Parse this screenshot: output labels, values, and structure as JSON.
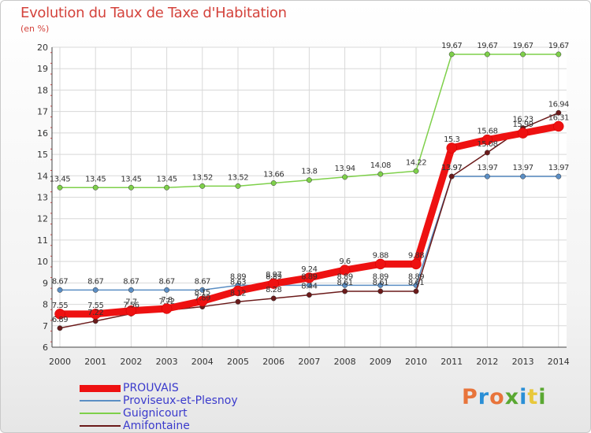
{
  "header": {
    "title": "Evolution du Taux de Taxe d'Habitation",
    "unit": "(en %)"
  },
  "brand": {
    "text": "Proxiti",
    "colors": [
      "#e8743b",
      "#2a8fd6",
      "#e8743b",
      "#5aa832",
      "#2a8fd6",
      "#e8c83b",
      "#5aa832"
    ]
  },
  "chart_data": {
    "type": "line",
    "title": "Evolution du Taux de Taxe d'Habitation",
    "ylabel": "(en %)",
    "xlabel": "",
    "x": [
      "2000",
      "2001",
      "2002",
      "2003",
      "2004",
      "2005",
      "2006",
      "2007",
      "2008",
      "2009",
      "2010",
      "2011",
      "2012",
      "2013",
      "2014"
    ],
    "ylim": [
      6,
      20
    ],
    "yticks": [
      "6",
      "7",
      "8",
      "9",
      "10",
      "11",
      "12",
      "13",
      "14",
      "15",
      "16",
      "17",
      "18",
      "19",
      "20"
    ],
    "grid": true,
    "legend_position": "bottom-left",
    "series": [
      {
        "name": "PROUVAIS",
        "color": "#ee1111",
        "values": [
          7.55,
          7.55,
          7.7,
          7.8,
          8.15,
          8.63,
          8.97,
          9.24,
          9.6,
          9.88,
          9.88,
          15.3,
          15.68,
          15.99,
          16.31
        ],
        "labels": [
          "7.55",
          "7.55",
          "7.7",
          "7.8",
          "8.15",
          "8.63",
          "8.97",
          "9.24",
          "9.6",
          "9.88",
          "9.88",
          "15.3",
          "15.68",
          "15.99",
          "16.31"
        ]
      },
      {
        "name": "Proviseux-et-Plesnoy",
        "color": "#5b8ec4",
        "values": [
          8.67,
          8.67,
          8.67,
          8.67,
          8.67,
          8.89,
          8.89,
          8.89,
          8.89,
          8.89,
          8.89,
          13.97,
          13.97,
          13.97,
          13.97
        ],
        "labels": [
          "8.67",
          "8.67",
          "8.67",
          "8.67",
          "8.67",
          "8.89",
          "8.89",
          "8.89",
          "8.89",
          "8.89",
          "8.89",
          "13.97",
          "13.97",
          "13.97",
          "13.97"
        ]
      },
      {
        "name": "Guignicourt",
        "color": "#7ed04a",
        "values": [
          13.45,
          13.45,
          13.45,
          13.45,
          13.52,
          13.52,
          13.66,
          13.8,
          13.94,
          14.08,
          14.22,
          19.67,
          19.67,
          19.67,
          19.67
        ],
        "labels": [
          "13.45",
          "13.45",
          "13.45",
          "13.45",
          "13.52",
          "13.52",
          "13.66",
          "13.8",
          "13.94",
          "14.08",
          "14.22",
          "19.67",
          "19.67",
          "19.67",
          "19.67"
        ]
      },
      {
        "name": "Amifontaine",
        "color": "#6b1a1a",
        "values": [
          6.89,
          7.22,
          7.56,
          7.72,
          7.89,
          8.12,
          8.28,
          8.44,
          8.61,
          8.61,
          8.61,
          13.97,
          15.08,
          16.23,
          16.94
        ],
        "labels": [
          "6.89",
          "7.22",
          "7.56",
          "7.72",
          "7.89",
          "8.12",
          "8.28",
          "8.44",
          "8.61",
          "8.61",
          "8.61",
          "13.97",
          "15.08",
          "16.23",
          "16.94"
        ]
      }
    ]
  }
}
